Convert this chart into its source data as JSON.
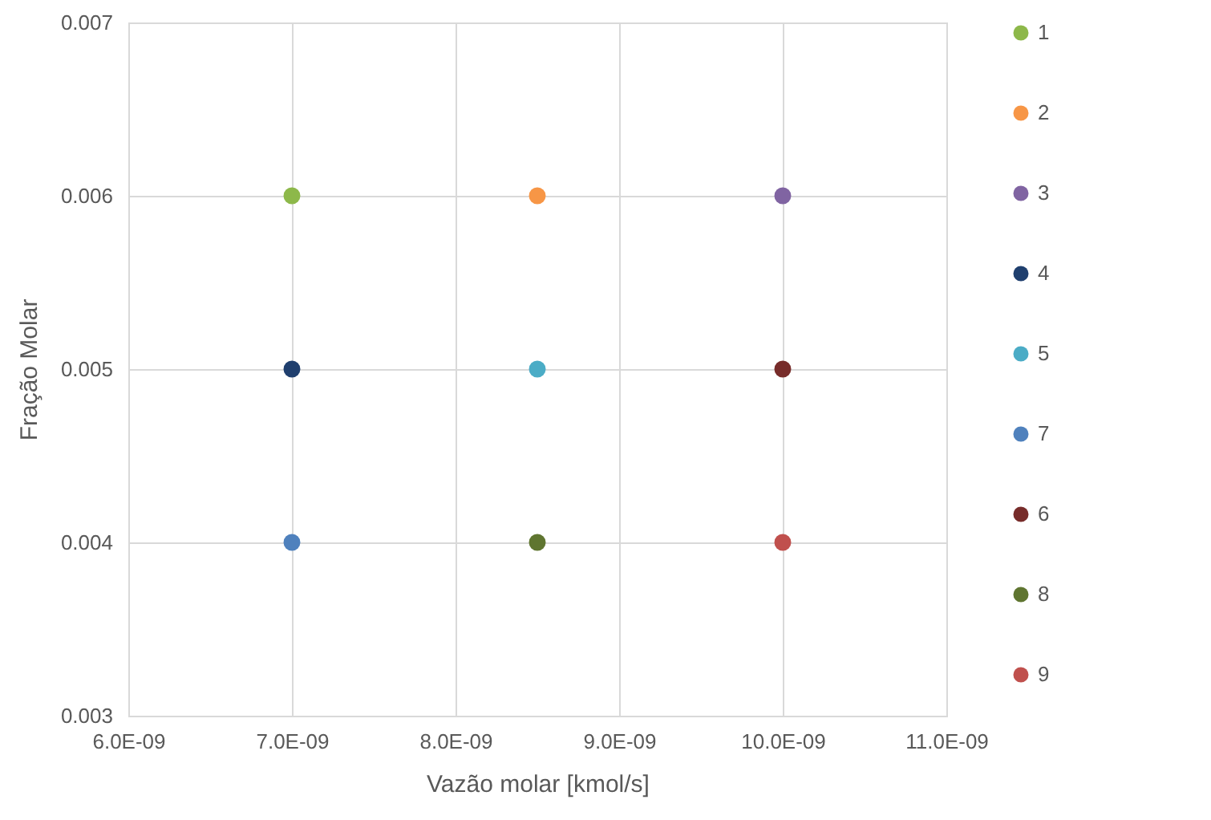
{
  "chart_data": {
    "type": "scatter",
    "xlabel": "Vazão molar [kmol/s]",
    "ylabel": "Fração Molar",
    "xlim": [
      6e-09,
      1.1e-08
    ],
    "xticks": [
      {
        "value": 6e-09,
        "label": "6.0E-09"
      },
      {
        "value": 7e-09,
        "label": "7.0E-09"
      },
      {
        "value": 8e-09,
        "label": "8.0E-09"
      },
      {
        "value": 9e-09,
        "label": "9.0E-09"
      },
      {
        "value": 1e-08,
        "label": "10.0E-09"
      },
      {
        "value": 1.1e-08,
        "label": "11.0E-09"
      }
    ],
    "ylim": [
      0.003,
      0.007
    ],
    "yticks": [
      {
        "value": 0.003,
        "label": "0.003"
      },
      {
        "value": 0.004,
        "label": "0.004"
      },
      {
        "value": 0.005,
        "label": "0.005"
      },
      {
        "value": 0.006,
        "label": "0.006"
      },
      {
        "value": 0.007,
        "label": "0.007"
      }
    ],
    "grid": true,
    "legend": "right",
    "marker": "circle",
    "series": [
      {
        "name": "1",
        "color": "#8db84a",
        "x": [
          7e-09
        ],
        "values": [
          0.006
        ]
      },
      {
        "name": "2",
        "color": "#f79646",
        "x": [
          8.5e-09
        ],
        "values": [
          0.006
        ]
      },
      {
        "name": "3",
        "color": "#8064a2",
        "x": [
          1e-08
        ],
        "values": [
          0.006
        ]
      },
      {
        "name": "4",
        "color": "#1f3f6e",
        "x": [
          7e-09
        ],
        "values": [
          0.005
        ]
      },
      {
        "name": "5",
        "color": "#4bacc6",
        "x": [
          8.5e-09
        ],
        "values": [
          0.005
        ]
      },
      {
        "name": "7",
        "color": "#4f81bd",
        "x": [
          7e-09
        ],
        "values": [
          0.004
        ]
      },
      {
        "name": "6",
        "color": "#772c2a",
        "x": [
          1e-08
        ],
        "values": [
          0.005
        ]
      },
      {
        "name": "8",
        "color": "#5f7530",
        "x": [
          8.5e-09
        ],
        "values": [
          0.004
        ]
      },
      {
        "name": "9",
        "color": "#c0504d",
        "x": [
          1e-08
        ],
        "values": [
          0.004
        ]
      }
    ]
  }
}
